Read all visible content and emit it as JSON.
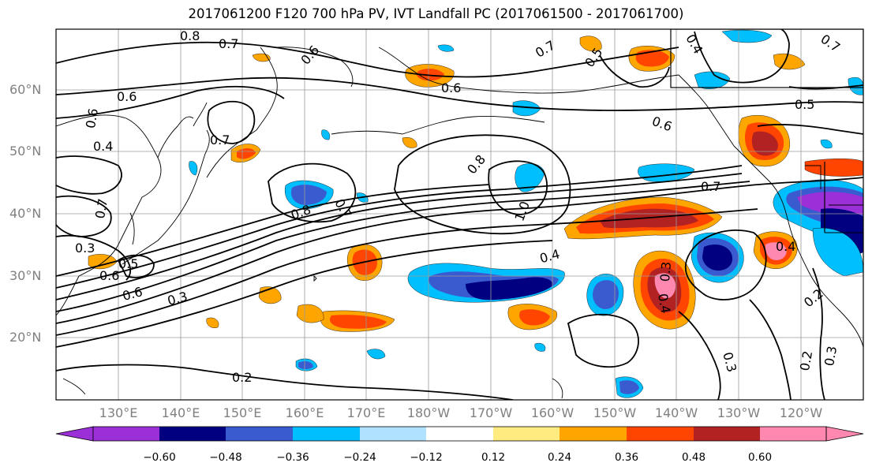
{
  "title": "2017061200 F120 700 hPa PV, IVT Landfall PC (2017061500 - 2017061700)",
  "map": {
    "lat_labels": [
      "60°N",
      "50°N",
      "40°N",
      "30°N",
      "20°N"
    ],
    "lon_labels": [
      "130°E",
      "140°E",
      "150°E",
      "160°E",
      "170°E",
      "180°W",
      "170°W",
      "160°W",
      "150°W",
      "140°W",
      "130°W",
      "120°W"
    ],
    "contour_labels": [
      "0.8",
      "0.7",
      "0.6",
      "0.6",
      "0.6",
      "0.7",
      "0.7",
      "0.4",
      "0.7",
      "0.5",
      "0.6",
      "0.8",
      "1.0",
      "0.8",
      "0.7",
      "0.7",
      "0.4",
      "0.3",
      "0.5",
      "0.6",
      "0.3",
      "0.3",
      "0.4",
      "0.4",
      "0.3",
      "0.2",
      "0.2",
      "0.3",
      "0.2",
      "0.4",
      "0.6",
      "0.6",
      "0.7",
      "0.5"
    ]
  },
  "colorbar": {
    "ticks": [
      "−0.60",
      "−0.48",
      "−0.36",
      "−0.24",
      "−0.12",
      "0.12",
      "0.24",
      "0.36",
      "0.48",
      "0.60"
    ],
    "colors": [
      "#9b30d9",
      "#000080",
      "#3a5bd0",
      "#00bfff",
      "#b0e2ff",
      "#ffffff",
      "#ffeb80",
      "#ffa500",
      "#ff4500",
      "#b22222",
      "#ff88b0"
    ]
  },
  "shading_colors": {
    "neg_deep": "#000080",
    "neg_mid": "#3a5bd0",
    "neg_light": "#00bfff",
    "neg_pale": "#b0e2ff",
    "pos_pale": "#ffeb80",
    "pos_light": "#ffa500",
    "pos_mid": "#ff4500",
    "pos_deep": "#b22222",
    "pos_extreme": "#ff88b0",
    "neg_extreme": "#9b30d9"
  }
}
